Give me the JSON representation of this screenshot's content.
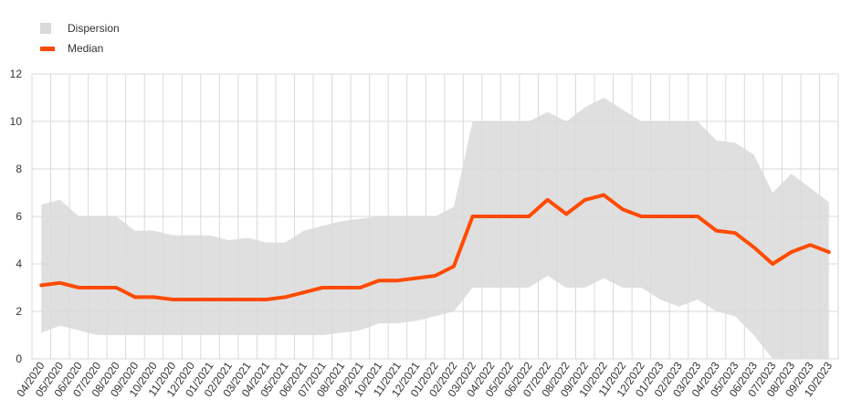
{
  "legend": {
    "dispersion_label": "Dispersion",
    "median_label": "Median"
  },
  "colors": {
    "dispersion": "#d9d9d9",
    "median": "#ff4b00",
    "grid": "#d9d9d9"
  },
  "chart_data": {
    "type": "area",
    "title": "",
    "xlabel": "",
    "ylabel": "",
    "ylim": [
      0,
      12
    ],
    "yticks": [
      0,
      2,
      4,
      6,
      8,
      10,
      12
    ],
    "grid": true,
    "legend_position": "top-left",
    "categories": [
      "04/2020",
      "05/2020",
      "06/2020",
      "07/2020",
      "08/2020",
      "09/2020",
      "10/2020",
      "11/2020",
      "12/2020",
      "01/2021",
      "02/2021",
      "03/2021",
      "04/2021",
      "05/2021",
      "06/2021",
      "07/2021",
      "08/2021",
      "09/2021",
      "10/2021",
      "11/2021",
      "12/2021",
      "01/2022",
      "02/2022",
      "03/2022",
      "04/2022",
      "05/2022",
      "06/2022",
      "07/2022",
      "08/2022",
      "09/2022",
      "10/2022",
      "11/2022",
      "12/2022",
      "01/2023",
      "02/2023",
      "03/2023",
      "04/2023",
      "05/2023",
      "06/2023",
      "07/2023",
      "08/2023",
      "09/2023",
      "10/2023"
    ],
    "series": [
      {
        "name": "Dispersion",
        "kind": "band",
        "upper": [
          6.5,
          6.7,
          6.0,
          6.0,
          6.0,
          5.4,
          5.4,
          5.2,
          5.2,
          5.2,
          5.0,
          5.1,
          4.9,
          4.9,
          5.4,
          5.6,
          5.8,
          5.9,
          6.0,
          6.0,
          6.0,
          6.0,
          6.4,
          10.0,
          10.0,
          10.0,
          10.0,
          10.4,
          10.0,
          10.6,
          11.0,
          10.5,
          10.0,
          10.0,
          10.0,
          10.0,
          9.2,
          9.1,
          8.6,
          7.0,
          7.8,
          7.2,
          6.6
        ],
        "lower": [
          1.1,
          1.4,
          1.2,
          1.0,
          1.0,
          1.0,
          1.0,
          1.0,
          1.0,
          1.0,
          1.0,
          1.0,
          1.0,
          1.0,
          1.0,
          1.0,
          1.1,
          1.2,
          1.5,
          1.5,
          1.6,
          1.8,
          2.0,
          3.0,
          3.0,
          3.0,
          3.0,
          3.5,
          3.0,
          3.0,
          3.4,
          3.0,
          3.0,
          2.5,
          2.2,
          2.5,
          2.0,
          1.8,
          1.0,
          0.0,
          0.0,
          0.0,
          0.0
        ]
      },
      {
        "name": "Median",
        "kind": "line",
        "values": [
          3.1,
          3.2,
          3.0,
          3.0,
          3.0,
          2.6,
          2.6,
          2.5,
          2.5,
          2.5,
          2.5,
          2.5,
          2.5,
          2.6,
          2.8,
          3.0,
          3.0,
          3.0,
          3.3,
          3.3,
          3.4,
          3.5,
          3.9,
          6.0,
          6.0,
          6.0,
          6.0,
          6.7,
          6.1,
          6.7,
          6.9,
          6.3,
          6.0,
          6.0,
          6.0,
          6.0,
          5.4,
          5.3,
          4.7,
          4.0,
          4.5,
          4.8,
          4.5
        ]
      }
    ]
  }
}
